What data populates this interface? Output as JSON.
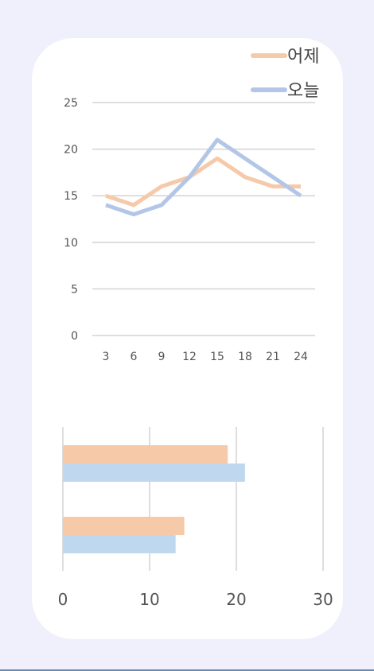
{
  "colors": {
    "background": "#f0f0fd",
    "card": "#ffffff",
    "yesterday": "#f6c9a9",
    "today": "#b3c6e7",
    "today_bar": "#c0d8ef",
    "grid": "#d3d3d3",
    "text": "#555555"
  },
  "chart_data": [
    {
      "type": "line",
      "title": "",
      "xlabel": "",
      "ylabel": "",
      "x": [
        3,
        6,
        9,
        12,
        15,
        18,
        21,
        24
      ],
      "ylim": [
        0,
        25
      ],
      "yticks": [
        0,
        5,
        10,
        15,
        20,
        25
      ],
      "grid": true,
      "legend_position": "top-right",
      "series": [
        {
          "name": "어제",
          "values": [
            15,
            14,
            16,
            17,
            19,
            17,
            16,
            16
          ],
          "color": "#f6c9a9"
        },
        {
          "name": "오늘",
          "values": [
            14,
            13,
            14,
            17,
            21,
            19,
            17,
            15
          ],
          "color": "#b3c6e7"
        }
      ]
    },
    {
      "type": "bar",
      "orientation": "horizontal",
      "title": "",
      "xlim": [
        0,
        30
      ],
      "xticks": [
        0,
        10,
        20,
        30
      ],
      "grid": true,
      "groups": [
        {
          "values": [
            19,
            21
          ]
        },
        {
          "values": [
            14,
            13
          ]
        }
      ],
      "series_colors": [
        "#f6c9a9",
        "#c0d8ef"
      ]
    }
  ]
}
